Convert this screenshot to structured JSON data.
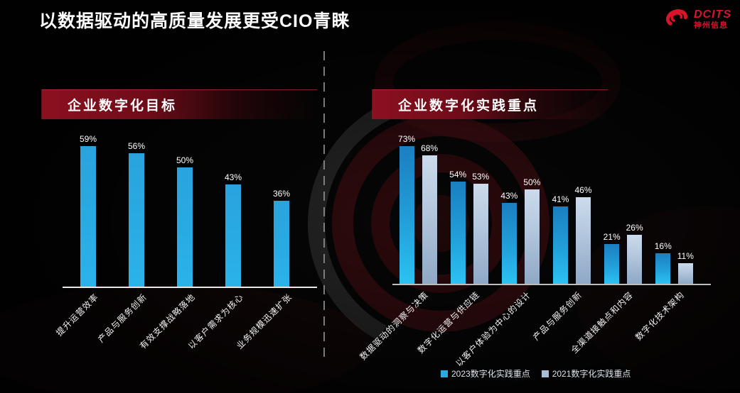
{
  "title": "以数据驱动的高质量发展更受CIO青睐",
  "logo": {
    "brand": "DCITS",
    "company": "神州信息",
    "color": "#d8142a"
  },
  "chart_data": [
    {
      "type": "bar",
      "panel": "left",
      "title": "企业数字化目标",
      "categories": [
        "提升运营效率",
        "产品与服务创新",
        "有效支撑战略落地",
        "以客户需求为核心",
        "业务规模迅速扩张"
      ],
      "values": [
        59,
        56,
        50,
        43,
        36
      ],
      "value_suffix": "%",
      "value_labels": true,
      "bar_color": "#29abe2",
      "ylim": [
        0,
        80
      ],
      "grid": false,
      "xlabel": "",
      "ylabel": ""
    },
    {
      "type": "bar",
      "panel": "right",
      "title": "企业数字化实践重点",
      "categories": [
        "数据驱动的洞察与决策",
        "数字化运营与供应链",
        "以客户体验为中心的设计",
        "产品与服务创新",
        "全渠道接触点和内容",
        "数字化技术架构"
      ],
      "series": [
        {
          "name": "2023数字化实践重点",
          "color": "#29abe2",
          "values": [
            73,
            54,
            43,
            41,
            21,
            16
          ]
        },
        {
          "name": "2021数字化实践重点",
          "color": "#a9bed6",
          "values": [
            68,
            53,
            50,
            46,
            26,
            11
          ]
        }
      ],
      "value_suffix": "%",
      "value_labels": true,
      "ylim": [
        0,
        80
      ],
      "grid": false,
      "legend_position": "bottom-right",
      "xlabel": "",
      "ylabel": ""
    }
  ],
  "legend": {
    "items": [
      {
        "label": "2023数字化实践重点",
        "color": "#2693cc"
      },
      {
        "label": "2021数字化实践重点",
        "color": "#8fa8c6"
      }
    ]
  },
  "colors": {
    "background": "#060606",
    "banner_red": "#8c1020",
    "bar_blue": "#29abe2",
    "bar_steel_blue": "#a9bed6",
    "axis_left": "#e8e8e8",
    "axis_right": "#bdbdbd",
    "title_text": "#fcfcfc"
  }
}
